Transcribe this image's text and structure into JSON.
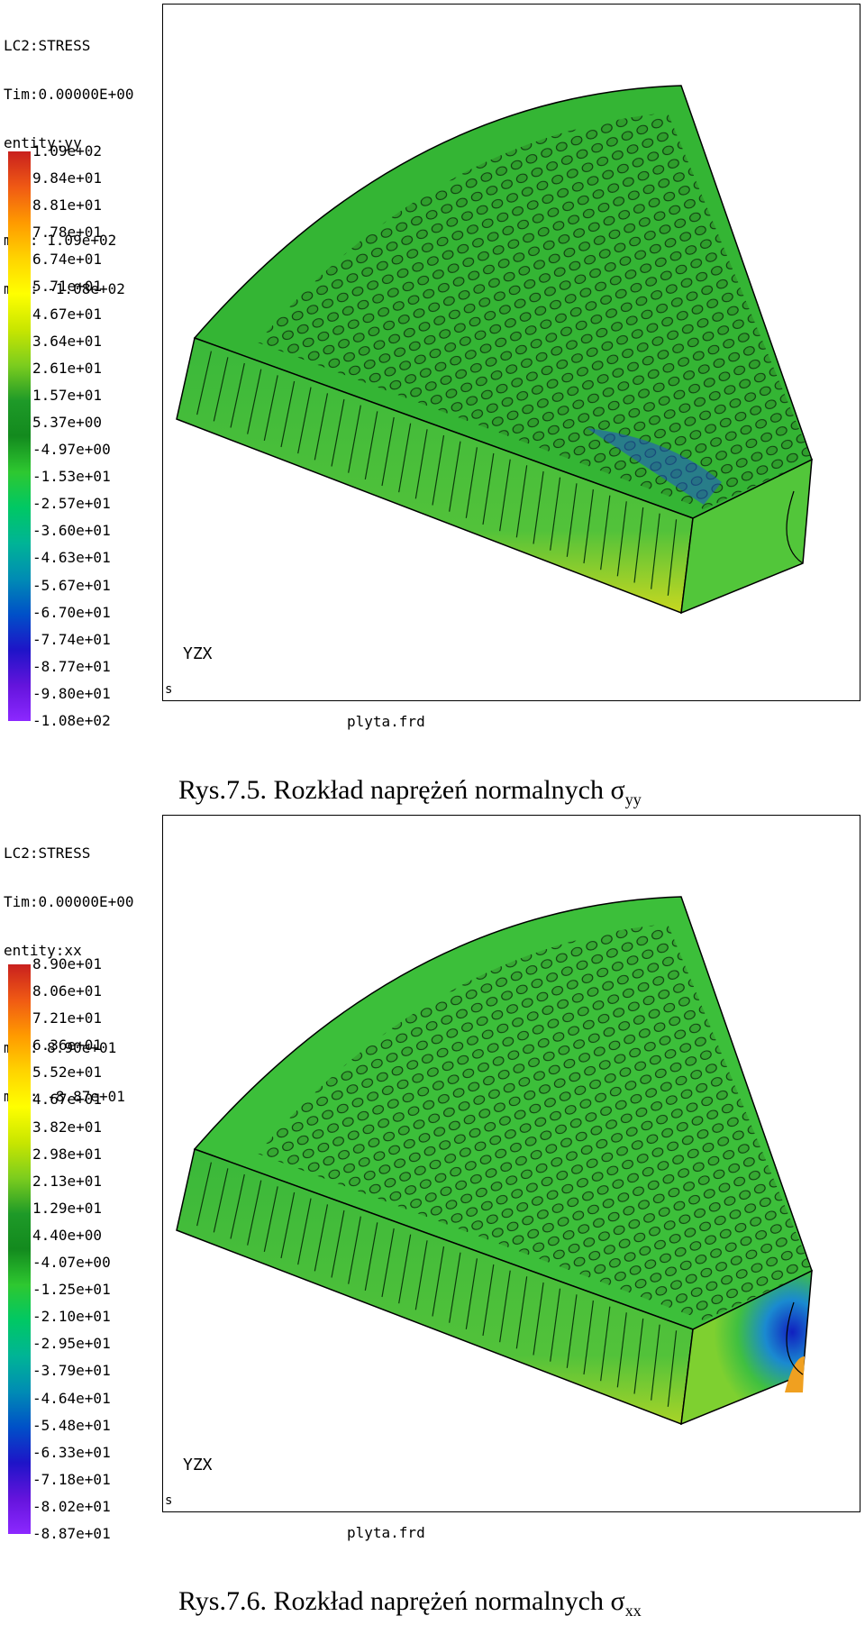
{
  "figures": [
    {
      "header": {
        "line1": "LC2:STRESS",
        "line2": "Tim:0.00000E+00",
        "line3": "entity:yy",
        "max": "max: 1.09e+02",
        "min": "min: -1.08e+02"
      },
      "scale_ticks": [
        "1.09e+02",
        "9.84e+01",
        "8.81e+01",
        "7.78e+01",
        "6.74e+01",
        "5.71e+01",
        "4.67e+01",
        "3.64e+01",
        "2.61e+01",
        "1.57e+01",
        "5.37e+00",
        "-4.97e+00",
        "-1.53e+01",
        "-2.57e+01",
        "-3.60e+01",
        "-4.63e+01",
        "-5.67e+01",
        "-6.70e+01",
        "-7.74e+01",
        "-8.77e+01",
        "-9.80e+01",
        "-1.08e+02"
      ],
      "filename": "plyta.frd",
      "axes_label": "YZX",
      "corner_mark": "s",
      "caption_prefix": "Rys.7.5. Rozkład naprężeń normalnych σ",
      "caption_sub": "yy"
    },
    {
      "header": {
        "line1": "LC2:STRESS",
        "line2": "Tim:0.00000E+00",
        "line3": "entity:xx",
        "max": "max: 8.90e+01",
        "min": "min: -8.87e+01"
      },
      "scale_ticks": [
        "8.90e+01",
        "8.06e+01",
        "7.21e+01",
        "6.36e+01",
        "5.52e+01",
        "4.67e+01",
        "3.82e+01",
        "2.98e+01",
        "2.13e+01",
        "1.29e+01",
        "4.40e+00",
        "-4.07e+00",
        "-1.25e+01",
        "-2.10e+01",
        "-2.95e+01",
        "-3.79e+01",
        "-4.64e+01",
        "-5.48e+01",
        "-6.33e+01",
        "-7.18e+01",
        "-8.02e+01",
        "-8.87e+01"
      ],
      "filename": "plyta.frd",
      "axes_label": "YZX",
      "corner_mark": "s",
      "caption_prefix": "Rys.7.6. Rozkład naprężeń normalnych σ",
      "caption_sub": "xx"
    }
  ],
  "colors": {
    "scale_stops": [
      "#c8201e",
      "#f05a14",
      "#ff9a00",
      "#ffd400",
      "#ffff00",
      "#c8e600",
      "#7ccd1e",
      "#1e9a28",
      "#138a1e",
      "#2ec830",
      "#00c864",
      "#00b496",
      "#008cb4",
      "#0050c8",
      "#1e14c8",
      "#6414dc",
      "#8c28ff"
    ],
    "body_green": "#36b834",
    "body_dark": "#1c8a22",
    "outline": "#000000"
  }
}
